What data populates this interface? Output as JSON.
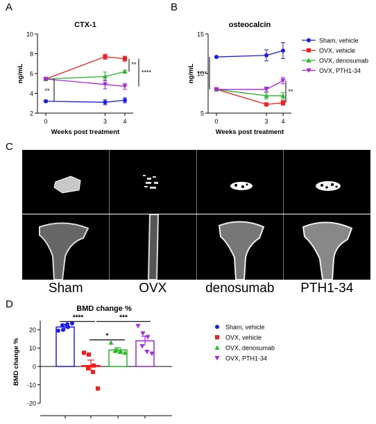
{
  "panels": {
    "a": "A",
    "b": "B",
    "c": "C",
    "d": "D"
  },
  "colors": {
    "sham": "#1a1aff",
    "ovx": "#ff1a1a",
    "deno": "#22bb22",
    "pth": "#aa22ee"
  },
  "legend": [
    "Sham, vehicle",
    "OVX, vehicle",
    "OVX, denosumab",
    "OVX, PTH1-34"
  ],
  "ct_labels": [
    "Sham",
    "OVX",
    "denosumab",
    "PTH1-34"
  ],
  "chart_data": [
    {
      "type": "line",
      "title": "CTX-1",
      "xlabel": "Weeks post treatment",
      "ylabel": "ng/mL",
      "x": [
        0,
        3,
        4
      ],
      "ylim": [
        2,
        10
      ],
      "yticks": [
        2,
        4,
        6,
        8,
        10
      ],
      "series": [
        {
          "name": "Sham, vehicle",
          "values": [
            3.2,
            3.1,
            3.3
          ],
          "err": [
            0.1,
            0.25,
            0.25
          ]
        },
        {
          "name": "OVX, vehicle",
          "values": [
            5.45,
            7.7,
            7.5
          ],
          "err": [
            0.1,
            0.25,
            0.25
          ]
        },
        {
          "name": "OVX, denosumab",
          "values": [
            5.45,
            5.7,
            6.2
          ],
          "err": [
            0.1,
            0.45,
            0.15
          ]
        },
        {
          "name": "OVX, PTH1-34",
          "values": [
            5.45,
            4.9,
            4.7
          ],
          "err": [
            0.1,
            0.45,
            0.3
          ]
        }
      ],
      "annotations": [
        "**",
        "**",
        "****"
      ]
    },
    {
      "type": "line",
      "title": "osteocalcin",
      "xlabel": "Weeks post treatment",
      "ylabel": "ng/mL",
      "x": [
        0,
        3,
        4
      ],
      "ylim": [
        5,
        15
      ],
      "yticks": [
        5,
        10,
        15
      ],
      "series": [
        {
          "name": "Sham, vehicle",
          "values": [
            12.1,
            12.3,
            12.9
          ],
          "err": [
            0.1,
            0.7,
            1.0
          ]
        },
        {
          "name": "OVX, vehicle",
          "values": [
            8.0,
            6.1,
            6.3
          ],
          "err": [
            0.1,
            0.2,
            0.3
          ]
        },
        {
          "name": "OVX, denosumab",
          "values": [
            8.0,
            7.2,
            7.2
          ],
          "err": [
            0.1,
            0.4,
            0.4
          ]
        },
        {
          "name": "OVX, PTH1-34",
          "values": [
            8.0,
            8.0,
            9.1
          ],
          "err": [
            0.1,
            0.3,
            0.4
          ]
        }
      ],
      "annotations": [
        "****",
        "**"
      ]
    },
    {
      "type": "bar",
      "title": "BMD change %",
      "ylabel": "BMD change %",
      "ylim": [
        -20,
        25
      ],
      "yticks": [
        -20,
        -10,
        0,
        10,
        20
      ],
      "categories": [
        "Sham, vehicle",
        "OVX, vehicle",
        "OVX, denosumab",
        "OVX, PTH1-34"
      ],
      "values": [
        21.5,
        0.5,
        9,
        14
      ],
      "err": [
        1.5,
        3,
        1.2,
        2.5
      ],
      "points": [
        [
          19.5,
          20,
          21.5,
          22.5,
          23,
          23.5
        ],
        [
          7.5,
          6.5,
          0.5,
          -1,
          -3,
          -12
        ],
        [
          13,
          9,
          8.5,
          8.5,
          8,
          7.5
        ],
        [
          22,
          18,
          16,
          11,
          8,
          7
        ]
      ],
      "annotations": [
        "****",
        "***",
        "*"
      ]
    }
  ]
}
